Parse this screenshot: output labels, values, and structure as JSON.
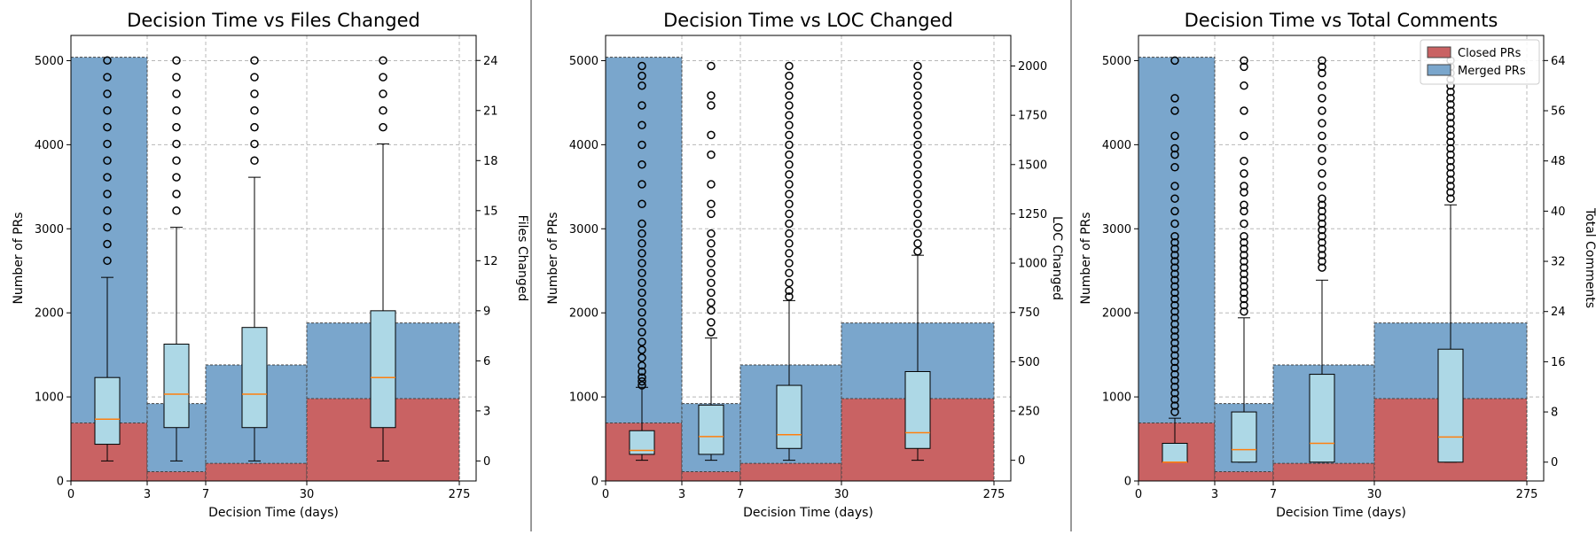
{
  "colors": {
    "closed": "#c96263",
    "merged": "#7aa6cc",
    "box": "#add8e6",
    "median": "#ff7f0e"
  },
  "chart_data": [
    {
      "type": "bar",
      "title": "Decision Time vs Files Changed",
      "xlabel": "Decision Time (days)",
      "ylabel": "Number of PRs",
      "y2label": "Files Changed",
      "x_tick_labels": [
        "0",
        "3",
        "7",
        "30",
        "275"
      ],
      "y_ticks": [
        0,
        1000,
        2000,
        3000,
        4000,
        5000
      ],
      "ylim": [
        0,
        5300
      ],
      "y2_ticks": [
        0,
        3,
        6,
        9,
        12,
        15,
        18,
        21,
        24
      ],
      "y2lim": [
        -1.2,
        25.5
      ],
      "grid": true,
      "bins": [
        {
          "range": "0-3",
          "closed": 690,
          "merged": 5040
        },
        {
          "range": "3-7",
          "closed": 110,
          "merged": 920
        },
        {
          "range": "7-30",
          "closed": 210,
          "merged": 1380
        },
        {
          "range": "30-275",
          "closed": 980,
          "merged": 1880
        }
      ],
      "boxes": [
        {
          "whislo": 0,
          "q1": 1,
          "med": 2.5,
          "q3": 5,
          "whishi": 11,
          "fliers": [
            12,
            13,
            14,
            15,
            16,
            17,
            18,
            19,
            20,
            21,
            22,
            23,
            24
          ]
        },
        {
          "whislo": 0,
          "q1": 2,
          "med": 4,
          "q3": 7,
          "whishi": 14,
          "fliers": [
            15,
            16,
            17,
            18,
            19,
            20,
            21,
            22,
            23,
            24
          ]
        },
        {
          "whislo": 0,
          "q1": 2,
          "med": 4,
          "q3": 8,
          "whishi": 17,
          "fliers": [
            18,
            19,
            20,
            21,
            22,
            23,
            24
          ]
        },
        {
          "whislo": 0,
          "q1": 2,
          "med": 5,
          "q3": 9,
          "whishi": 19,
          "fliers": [
            20,
            21,
            22,
            23,
            24
          ]
        }
      ]
    },
    {
      "type": "bar",
      "title": "Decision Time vs LOC Changed",
      "xlabel": "Decision Time (days)",
      "ylabel": "Number of PRs",
      "y2label": "LOC Changed",
      "x_tick_labels": [
        "0",
        "3",
        "7",
        "30",
        "275"
      ],
      "y_ticks": [
        0,
        1000,
        2000,
        3000,
        4000,
        5000
      ],
      "ylim": [
        0,
        5300
      ],
      "y2_ticks": [
        0,
        250,
        500,
        750,
        1000,
        1250,
        1500,
        1750,
        2000
      ],
      "y2lim": [
        -105,
        2155
      ],
      "grid": true,
      "bins": [
        {
          "range": "0-3",
          "closed": 690,
          "merged": 5040
        },
        {
          "range": "3-7",
          "closed": 110,
          "merged": 920
        },
        {
          "range": "7-30",
          "closed": 210,
          "merged": 1380
        },
        {
          "range": "30-275",
          "closed": 980,
          "merged": 1880
        }
      ],
      "boxes": [
        {
          "whislo": 0,
          "q1": 30,
          "med": 50,
          "q3": 150,
          "whishi": 370,
          "fliers": [
            380,
            400,
            420,
            450,
            480,
            520,
            560,
            600,
            650,
            700,
            750,
            800,
            850,
            900,
            950,
            1000,
            1050,
            1100,
            1150,
            1200,
            1300,
            1400,
            1500,
            1600,
            1700,
            1800,
            1900,
            1950,
            2000
          ]
        },
        {
          "whislo": 0,
          "q1": 30,
          "med": 120,
          "q3": 280,
          "whishi": 620,
          "fliers": [
            650,
            700,
            760,
            800,
            850,
            900,
            950,
            1000,
            1050,
            1100,
            1150,
            1250,
            1300,
            1400,
            1550,
            1650,
            1800,
            1850,
            2000
          ]
        },
        {
          "whislo": 0,
          "q1": 60,
          "med": 130,
          "q3": 380,
          "whishi": 810,
          "fliers": [
            830,
            860,
            900,
            950,
            1000,
            1050,
            1100,
            1150,
            1200,
            1250,
            1300,
            1350,
            1400,
            1450,
            1500,
            1550,
            1600,
            1650,
            1700,
            1750,
            1800,
            1850,
            1900,
            1950,
            2000
          ]
        },
        {
          "whislo": 0,
          "q1": 60,
          "med": 140,
          "q3": 450,
          "whishi": 1040,
          "fliers": [
            1060,
            1100,
            1150,
            1200,
            1250,
            1300,
            1350,
            1400,
            1450,
            1500,
            1550,
            1600,
            1650,
            1700,
            1750,
            1800,
            1850,
            1900,
            1950,
            2000
          ]
        }
      ]
    },
    {
      "type": "bar",
      "title": "Decision Time vs Total Comments",
      "xlabel": "Decision Time (days)",
      "ylabel": "Number of PRs",
      "y2label": "Total Comments",
      "x_tick_labels": [
        "0",
        "3",
        "7",
        "30",
        "275"
      ],
      "y_ticks": [
        0,
        1000,
        2000,
        3000,
        4000,
        5000
      ],
      "ylim": [
        0,
        5300
      ],
      "y2_ticks": [
        0,
        8,
        16,
        24,
        32,
        40,
        48,
        56,
        64
      ],
      "y2lim": [
        -3,
        68
      ],
      "grid": true,
      "legend": {
        "position": "top-right",
        "entries": [
          "Closed PRs",
          "Merged PRs"
        ]
      },
      "bins": [
        {
          "range": "0-3",
          "closed": 690,
          "merged": 5040
        },
        {
          "range": "3-7",
          "closed": 110,
          "merged": 920
        },
        {
          "range": "7-30",
          "closed": 210,
          "merged": 1380
        },
        {
          "range": "30-275",
          "closed": 980,
          "merged": 1880
        }
      ],
      "boxes": [
        {
          "whislo": 0,
          "q1": 0,
          "med": 0,
          "q3": 3,
          "whishi": 7,
          "fliers": [
            8,
            9,
            10,
            11,
            12,
            13,
            14,
            15,
            16,
            17,
            18,
            19,
            20,
            21,
            22,
            23,
            24,
            25,
            26,
            27,
            28,
            29,
            30,
            31,
            32,
            33,
            34,
            35,
            36,
            38,
            40,
            42,
            44,
            47,
            49,
            50,
            52,
            56,
            58,
            64
          ]
        },
        {
          "whislo": 0,
          "q1": 0,
          "med": 2,
          "q3": 8,
          "whishi": 23,
          "fliers": [
            24,
            25,
            26,
            27,
            28,
            29,
            30,
            31,
            32,
            33,
            34,
            35,
            36,
            38,
            40,
            41,
            43,
            44,
            46,
            48,
            52,
            56,
            60,
            63,
            64
          ]
        },
        {
          "whislo": 0,
          "q1": 0,
          "med": 3,
          "q3": 14,
          "whishi": 29,
          "fliers": [
            31,
            32,
            33,
            34,
            35,
            36,
            37,
            38,
            39,
            40,
            41,
            42,
            44,
            46,
            48,
            50,
            52,
            54,
            56,
            58,
            60,
            62,
            63,
            64
          ]
        },
        {
          "whislo": 0,
          "q1": 0,
          "med": 4,
          "q3": 18,
          "whishi": 41,
          "fliers": [
            42,
            43,
            44,
            45,
            46,
            47,
            48,
            49,
            50,
            51,
            52,
            53,
            54,
            55,
            56,
            57,
            58,
            59,
            60,
            61,
            62,
            63,
            64
          ]
        }
      ]
    }
  ]
}
